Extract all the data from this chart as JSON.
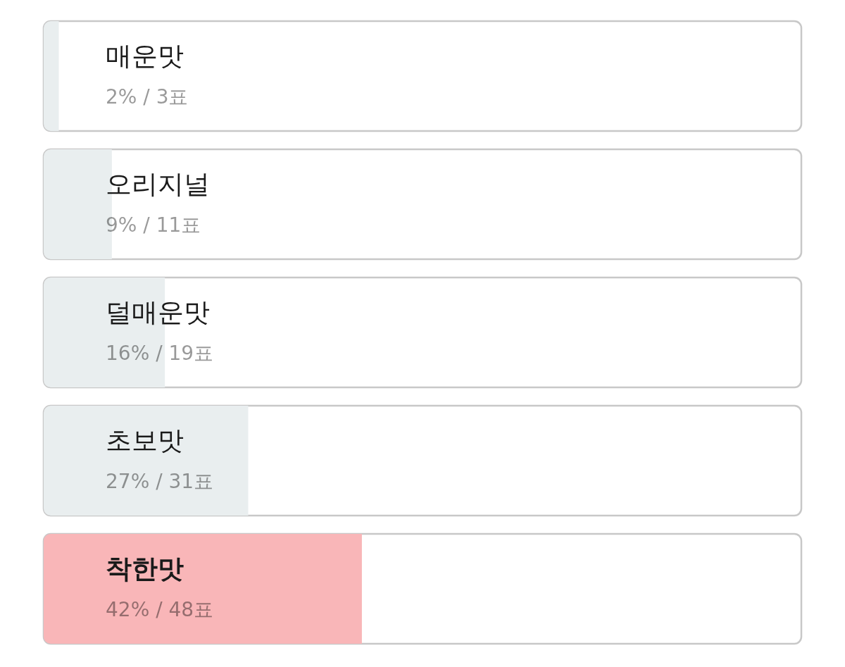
{
  "chart_data": {
    "type": "bar",
    "orientation": "horizontal",
    "categories": [
      "매운맛",
      "오리지널",
      "덜매운맛",
      "초보맛",
      "착한맛"
    ],
    "values": [
      2,
      9,
      16,
      27,
      42
    ],
    "colors": [
      "#e9eeef",
      "#e9eeef",
      "#e9eeef",
      "#e9eeef",
      "#f9b6b8"
    ],
    "value_labels": [
      "2% / 3표",
      "9% / 11표",
      "16% / 19표",
      "27% / 31표",
      "42% / 48표"
    ],
    "xlim": [
      0,
      100
    ],
    "tick_labels": "y"
  }
}
